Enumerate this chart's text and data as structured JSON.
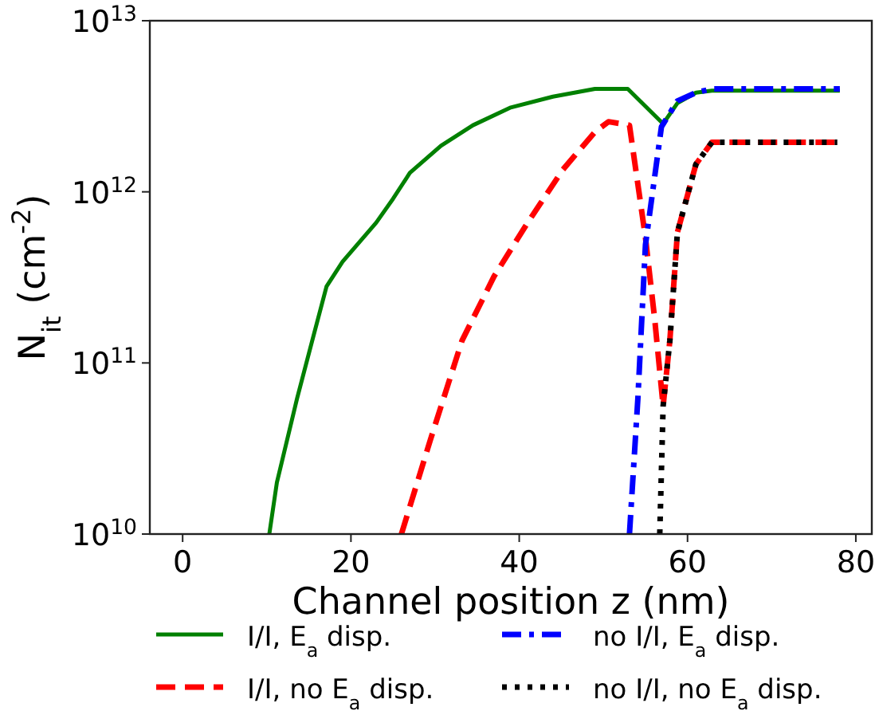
{
  "chart_data": {
    "type": "line",
    "xlabel": "Channel position z (nm)",
    "ylabel": "N$_{it}$ (cm$^{-2}$)",
    "log": "y",
    "xlim": [
      -3.9,
      81.9
    ],
    "xticks": [
      0,
      20,
      40,
      60,
      80
    ],
    "ylim": [
      10000000000.0,
      10000000000000.0
    ],
    "yticks": [
      {
        "value": 10000000000.0,
        "label": "10$^{10}$"
      },
      {
        "value": 100000000000.0,
        "label": "10$^{11}$"
      },
      {
        "value": 1000000000000.0,
        "label": "10$^{12}$"
      },
      {
        "value": 10000000000000.0,
        "label": "10$^{13}$"
      }
    ],
    "legend": "bottom",
    "grid": false,
    "series": [
      {
        "name": "I/I, E$_{a}$ disp.",
        "color": "#008000",
        "line_style": "solid",
        "x": [
          10.3,
          11.2,
          13.6,
          15.4,
          17.1,
          19.0,
          23.0,
          25.0,
          27.0,
          30.7,
          34.5,
          38.9,
          44.0,
          49.0,
          52.9,
          57.1,
          58.8,
          61.0,
          62.9,
          78.1
        ],
        "values": [
          10000000000.0,
          20000000000.0,
          62000000000.0,
          135000000000.0,
          280000000000.0,
          390000000000.0,
          660000000000.0,
          910000000000.0,
          1290000000000.0,
          1860000000000.0,
          2450000000000.0,
          3100000000000.0,
          3600000000000.0,
          4000000000000.0,
          4000000000000.0,
          2500000000000.0,
          3300000000000.0,
          3800000000000.0,
          3900000000000.0,
          3900000000000.0
        ]
      },
      {
        "name": "I/I, no E$_{a}$ disp.",
        "color": "#ff0000",
        "line_style": "dashed",
        "x": [
          26.0,
          29.4,
          33.2,
          37.0,
          41.0,
          45.2,
          49.0,
          50.6,
          53.1,
          55.0,
          56.1,
          57.1,
          57.9,
          58.8,
          61.0,
          62.9,
          77.8
        ],
        "values": [
          10000000000.0,
          35000000000.0,
          135000000000.0,
          320000000000.0,
          660000000000.0,
          1350000000000.0,
          2240000000000.0,
          2570000000000.0,
          2450000000000.0,
          540000000000.0,
          180000000000.0,
          56000000000.0,
          135000000000.0,
          580000000000.0,
          1450000000000.0,
          1950000000000.0,
          1950000000000.0
        ]
      },
      {
        "name": "no I/I, E$_{a}$ disp.",
        "color": "#0000ff",
        "line_style": "dashdot",
        "x": [
          53.1,
          54.1,
          55.0,
          56.9,
          58.8,
          61.0,
          62.9,
          78.1
        ],
        "values": [
          10000000000.0,
          62000000000.0,
          490000000000.0,
          2400000000000.0,
          3400000000000.0,
          3800000000000.0,
          4000000000000.0,
          4000000000000.0
        ]
      },
      {
        "name": "no I/I, no E$_{a}$ disp.",
        "color": "#000000",
        "line_style": "dotted",
        "x": [
          56.7,
          57.1,
          57.9,
          58.8,
          61.0,
          62.9,
          77.8
        ],
        "values": [
          10000000000.0,
          56000000000.0,
          135000000000.0,
          580000000000.0,
          1450000000000.0,
          1950000000000.0,
          1950000000000.0
        ]
      }
    ]
  }
}
